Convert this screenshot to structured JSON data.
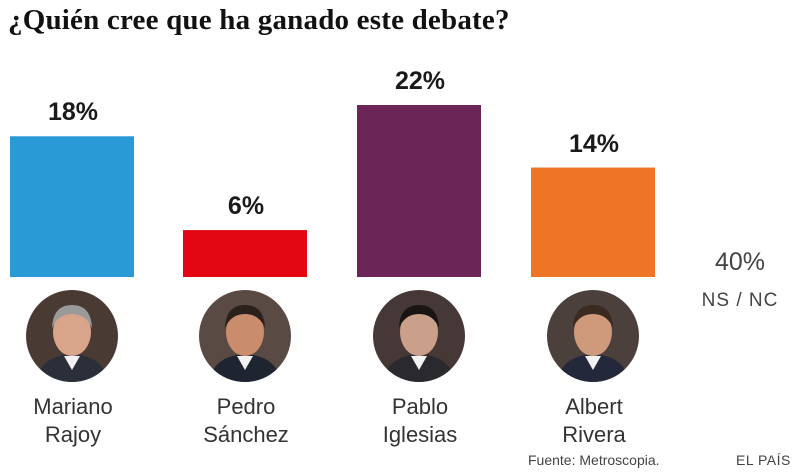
{
  "chart_data": {
    "type": "bar",
    "title": "¿Quién cree que ha ganado este debate?",
    "categories": [
      "Mariano Rajoy",
      "Pedro Sánchez",
      "Pablo Iglesias",
      "Albert Rivera"
    ],
    "name_lines": [
      [
        "Mariano",
        "Rajoy"
      ],
      [
        "Pedro",
        "Sánchez"
      ],
      [
        "Pablo",
        "Iglesias"
      ],
      [
        "Albert",
        "Rivera"
      ]
    ],
    "values": [
      18,
      6,
      22,
      14
    ],
    "value_labels": [
      "18%",
      "6%",
      "22%",
      "14%"
    ],
    "colors": [
      "#2a9ad6",
      "#e30613",
      "#6b2657",
      "#ee7526"
    ],
    "ylim": [
      0,
      22
    ],
    "grid": false,
    "other": {
      "value": 40,
      "value_label": "40%",
      "label": "NS / NC"
    }
  },
  "avatars": [
    {
      "icon": "mariano-rajoy-portrait-icon",
      "hair": "#9a9a9a",
      "skin": "#d9a58a",
      "suit": "#2b2f3a",
      "bg": "#4a3a34"
    },
    {
      "icon": "pedro-sanchez-portrait-icon",
      "hair": "#2a201c",
      "skin": "#c98c6c",
      "suit": "#1f2530",
      "bg": "#5a4a44"
    },
    {
      "icon": "pablo-iglesias-portrait-icon",
      "hair": "#1a1512",
      "skin": "#caa08a",
      "suit": "#2a2a2e",
      "bg": "#463836"
    },
    {
      "icon": "albert-rivera-portrait-icon",
      "hair": "#3a2a20",
      "skin": "#cf9a7c",
      "suit": "#23283a",
      "bg": "#4b403c"
    }
  ],
  "footer": {
    "source": "Fuente: Metroscopia.",
    "brand": "EL PAÍS"
  }
}
